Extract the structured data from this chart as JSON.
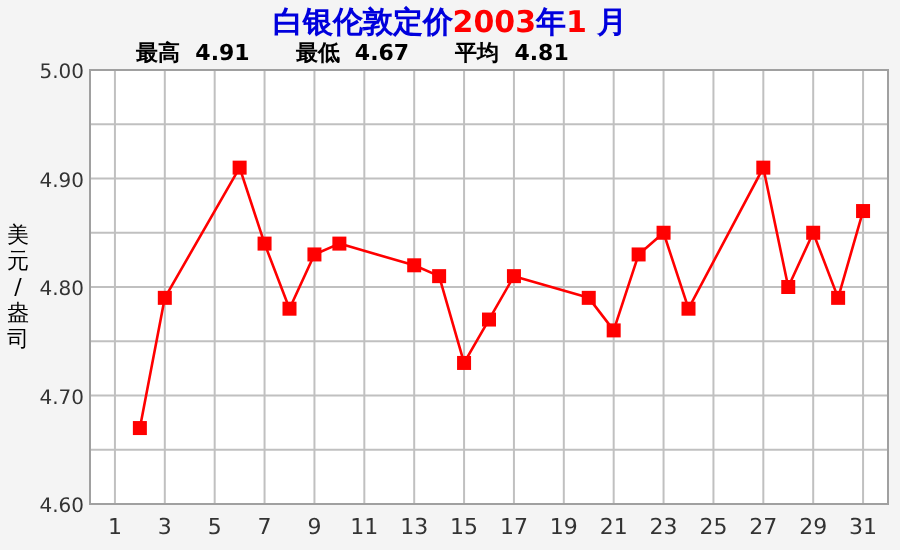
{
  "chart_data": {
    "type": "line",
    "title": "白银伦敦定价2003年1 月",
    "subtitle": "最高  4.91      最低  4.67      平均  4.81",
    "ylabel": "美元/盎司",
    "series": [
      {
        "color": "#ff0000",
        "x": [
          2,
          3,
          6,
          7,
          8,
          9,
          10,
          13,
          14,
          15,
          16,
          17,
          20,
          21,
          22,
          23,
          24,
          27,
          28,
          29,
          30,
          31
        ],
        "values": [
          4.67,
          4.79,
          4.91,
          4.84,
          4.78,
          4.83,
          4.84,
          4.82,
          4.81,
          4.73,
          4.77,
          4.81,
          4.79,
          4.76,
          4.83,
          4.85,
          4.78,
          4.91,
          4.8,
          4.85,
          4.79,
          4.87
        ]
      }
    ],
    "xlim": [
      0,
      32
    ],
    "xticks": [
      1,
      3,
      5,
      7,
      9,
      11,
      13,
      15,
      17,
      19,
      21,
      23,
      25,
      27,
      29,
      31
    ],
    "ylim": [
      4.6,
      5.0
    ],
    "yticks": [
      {
        "value": 4.6,
        "label": "4.60"
      },
      {
        "value": 4.65,
        "label": null
      },
      {
        "value": 4.7,
        "label": "4.70"
      },
      {
        "value": 4.75,
        "label": null
      },
      {
        "value": 4.8,
        "label": "4.80"
      },
      {
        "value": 4.85,
        "label": null
      },
      {
        "value": 4.9,
        "label": "4.90"
      },
      {
        "value": 4.95,
        "label": null
      },
      {
        "value": 5.0,
        "label": "5.00"
      }
    ],
    "grid": true,
    "marker": "square",
    "line_style": "solid"
  }
}
